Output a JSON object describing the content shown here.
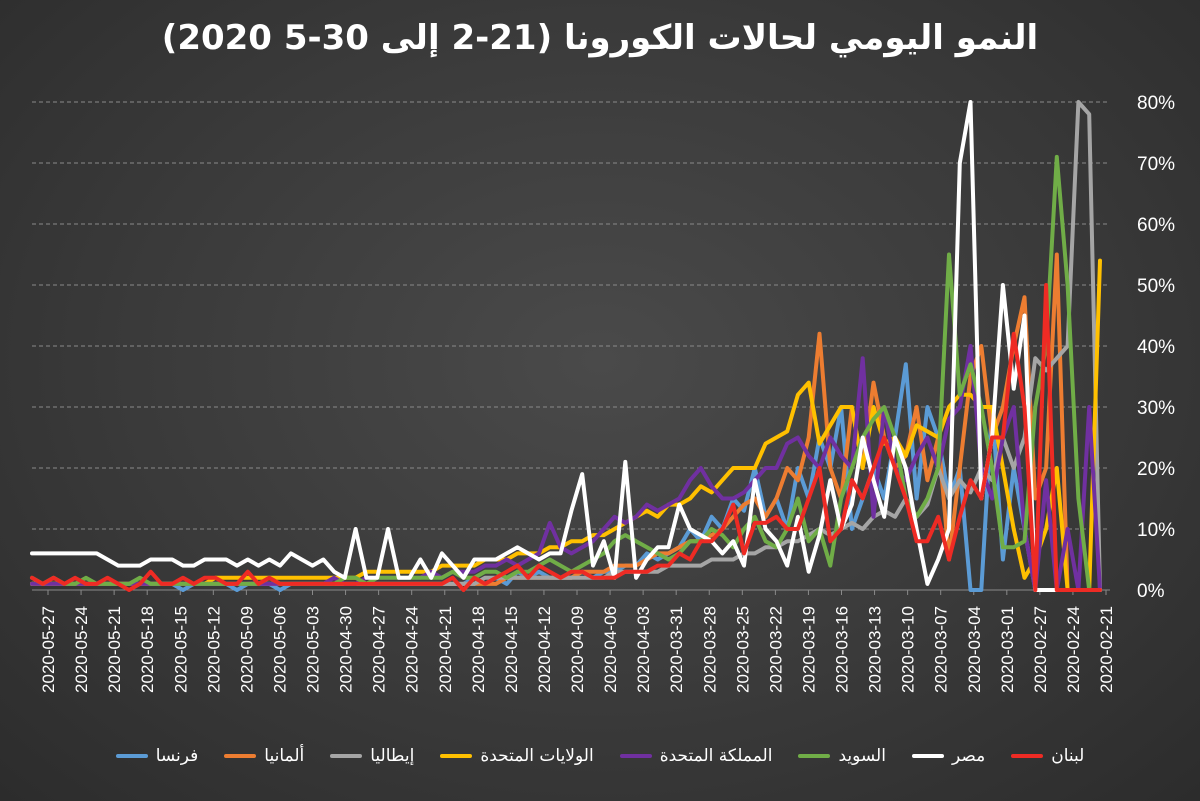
{
  "chart_data": {
    "type": "line",
    "title": "النمو اليومي لحالات الكورونا (21-2 إلى 30-5 2020)",
    "y_ticks": [
      "0%",
      "10%",
      "20%",
      "30%",
      "40%",
      "50%",
      "60%",
      "70%",
      "80%"
    ],
    "ylim": [
      0,
      80
    ],
    "x_tick_labels": [
      "2020-05-27",
      "2020-05-24",
      "2020-05-21",
      "2020-05-18",
      "2020-05-15",
      "2020-05-12",
      "2020-05-09",
      "2020-05-06",
      "2020-05-03",
      "2020-04-30",
      "2020-04-27",
      "2020-04-24",
      "2020-04-21",
      "2020-04-18",
      "2020-04-15",
      "2020-04-12",
      "2020-04-09",
      "2020-04-06",
      "2020-04-03",
      "2020-03-31",
      "2020-03-28",
      "2020-03-25",
      "2020-03-22",
      "2020-03-19",
      "2020-03-16",
      "2020-03-13",
      "2020-03-10",
      "2020-03-07",
      "2020-03-04",
      "2020-03-01",
      "2020-02-27",
      "2020-02-24",
      "2020-02-21"
    ],
    "x_order": "dates descend left to right; values listed from 2020-02-21 to 2020-05-30",
    "legend_position": "bottom",
    "grid": "horizontal dashed",
    "series": [
      {
        "name": "فرنسا",
        "color": "#5b9bd5",
        "values": [
          0,
          0,
          0,
          0,
          0,
          0,
          0,
          10,
          20,
          5,
          30,
          0,
          0,
          20,
          15,
          25,
          30,
          15,
          37,
          25,
          15,
          20,
          15,
          10,
          30,
          20,
          25,
          15,
          20,
          10,
          15,
          12,
          20,
          13,
          15,
          10,
          12,
          8,
          10,
          7,
          6,
          5,
          6,
          4,
          4,
          3,
          3,
          2,
          3,
          2,
          2,
          2,
          3,
          2,
          3,
          1,
          2,
          1,
          2,
          1,
          1,
          1,
          1,
          1,
          1,
          1,
          1,
          1,
          1,
          1,
          1,
          1,
          1,
          1,
          1,
          1,
          0,
          1,
          1,
          1,
          0,
          1,
          1,
          1,
          1,
          0,
          1,
          1,
          1,
          1,
          1,
          1,
          1,
          1,
          1,
          1,
          1,
          1,
          1,
          1
        ]
      },
      {
        "name": "ألمانيا",
        "color": "#ed7d31",
        "values": [
          0,
          0,
          0,
          0,
          55,
          20,
          15,
          48,
          40,
          30,
          25,
          40,
          35,
          20,
          5,
          25,
          18,
          30,
          22,
          20,
          25,
          34,
          20,
          30,
          15,
          20,
          42,
          25,
          18,
          20,
          15,
          12,
          15,
          14,
          12,
          10,
          9,
          8,
          8,
          7,
          6,
          6,
          5,
          4,
          4,
          4,
          3,
          3,
          3,
          2,
          2,
          2,
          2,
          2,
          2,
          2,
          1,
          1,
          1,
          1,
          1,
          1,
          1,
          1,
          1,
          1,
          1,
          1,
          1,
          1,
          1,
          1,
          1,
          1,
          1,
          1,
          1,
          1,
          1,
          1,
          1,
          1,
          1,
          1,
          1,
          1,
          1,
          1,
          1,
          1,
          1,
          1,
          1,
          1,
          1,
          1,
          1,
          1,
          1,
          1
        ]
      },
      {
        "name": "إيطاليا",
        "color": "#a5a5a5",
        "values": [
          0,
          78,
          80,
          40,
          38,
          36,
          38,
          25,
          20,
          25,
          18,
          20,
          16,
          18,
          15,
          20,
          14,
          12,
          15,
          12,
          13,
          12,
          10,
          11,
          10,
          9,
          10,
          9,
          8,
          8,
          7,
          7,
          6,
          6,
          5,
          5,
          5,
          4,
          4,
          4,
          4,
          3,
          3,
          3,
          3,
          3,
          2,
          2,
          2,
          2,
          2,
          2,
          2,
          2,
          2,
          2,
          2,
          2,
          1,
          1,
          1,
          1,
          1,
          1,
          1,
          1,
          1,
          1,
          1,
          1,
          1,
          1,
          1,
          1,
          1,
          1,
          1,
          1,
          1,
          1,
          1,
          1,
          1,
          1,
          1,
          1,
          1,
          1,
          1,
          1,
          1,
          1,
          1,
          1,
          1,
          1,
          1,
          1,
          1,
          1
        ]
      },
      {
        "name": "الولايات المتحدة",
        "color": "#ffc000",
        "values": [
          54,
          0,
          0,
          0,
          20,
          10,
          5,
          2,
          10,
          20,
          30,
          30,
          32,
          32,
          30,
          25,
          26,
          27,
          22,
          25,
          24,
          30,
          20,
          30,
          30,
          27,
          24,
          34,
          32,
          26,
          25,
          24,
          20,
          20,
          20,
          18,
          16,
          17,
          15,
          14,
          14,
          12,
          13,
          12,
          11,
          10,
          9,
          9,
          8,
          8,
          7,
          7,
          6,
          6,
          6,
          5,
          5,
          5,
          4,
          4,
          4,
          4,
          3,
          3,
          3,
          3,
          3,
          3,
          3,
          2,
          2,
          2,
          2,
          2,
          2,
          2,
          2,
          2,
          2,
          2,
          2,
          2,
          2,
          1,
          1,
          1,
          1,
          1,
          1,
          1,
          1,
          1,
          1,
          1,
          1,
          1,
          1,
          1,
          1,
          1
        ]
      },
      {
        "name": "المملكة المتحدة",
        "color": "#7030a0",
        "values": [
          0,
          30,
          0,
          10,
          0,
          18,
          0,
          10,
          30,
          25,
          15,
          20,
          40,
          30,
          28,
          20,
          25,
          22,
          18,
          20,
          30,
          12,
          38,
          20,
          22,
          25,
          20,
          22,
          25,
          24,
          20,
          20,
          18,
          16,
          15,
          15,
          17,
          20,
          18,
          15,
          14,
          13,
          14,
          12,
          11,
          12,
          10,
          8,
          7,
          6,
          7,
          11,
          6,
          5,
          4,
          5,
          4,
          4,
          3,
          3,
          3,
          2,
          3,
          2,
          2,
          2,
          2,
          2,
          2,
          1,
          1,
          2,
          1,
          1,
          1,
          1,
          1,
          1,
          1,
          1,
          1,
          1,
          1,
          1,
          1,
          1,
          1,
          1,
          1,
          1,
          1,
          1,
          1,
          1,
          1,
          1,
          1,
          1,
          1,
          1
        ]
      },
      {
        "name": "السويد",
        "color": "#70ad47",
        "values": [
          0,
          0,
          15,
          50,
          71,
          40,
          30,
          8,
          7,
          7,
          20,
          30,
          37,
          32,
          55,
          20,
          15,
          12,
          15,
          25,
          30,
          28,
          25,
          20,
          15,
          4,
          10,
          8,
          15,
          10,
          7,
          8,
          12,
          10,
          7,
          9,
          10,
          8,
          8,
          6,
          5,
          6,
          7,
          8,
          9,
          8,
          6,
          5,
          4,
          3,
          4,
          5,
          4,
          3,
          3,
          2,
          3,
          3,
          2,
          2,
          3,
          2,
          2,
          2,
          2,
          2,
          2,
          2,
          1,
          2,
          2,
          1,
          1,
          1,
          1,
          1,
          1,
          2,
          1,
          1,
          1,
          1,
          1,
          1,
          1,
          1,
          1,
          1,
          1,
          2,
          1,
          1,
          1,
          1,
          2,
          1,
          1,
          2,
          1,
          2
        ]
      },
      {
        "name": "مصر",
        "color": "#ffffff",
        "values": [
          0,
          0,
          0,
          0,
          0,
          0,
          0,
          45,
          33,
          50,
          25,
          15,
          80,
          70,
          10,
          5,
          1,
          10,
          20,
          25,
          12,
          18,
          25,
          14,
          10,
          18,
          9,
          3,
          12,
          4,
          8,
          10,
          18,
          4,
          8,
          6,
          8,
          9,
          10,
          14,
          7,
          7,
          5,
          2,
          21,
          2,
          8,
          4,
          19,
          13,
          6,
          6,
          5,
          6,
          7,
          6,
          5,
          5,
          5,
          2,
          4,
          6,
          2,
          5,
          2,
          2,
          10,
          2,
          2,
          10,
          2,
          3,
          5,
          4,
          5,
          6,
          4,
          5,
          4,
          5,
          4,
          5,
          5,
          5,
          4,
          4,
          5,
          5,
          5,
          4,
          4,
          4,
          5,
          6,
          6,
          6,
          6,
          6,
          6,
          6
        ]
      },
      {
        "name": "لبنان",
        "color": "#ee2b24",
        "values": [
          0,
          0,
          0,
          0,
          0,
          50,
          0,
          30,
          42,
          25,
          25,
          15,
          18,
          12,
          5,
          12,
          8,
          8,
          15,
          20,
          25,
          20,
          15,
          18,
          10,
          8,
          20,
          15,
          10,
          10,
          12,
          11,
          11,
          6,
          14,
          10,
          8,
          8,
          5,
          6,
          4,
          4,
          3,
          3,
          3,
          2,
          2,
          2,
          3,
          3,
          2,
          3,
          4,
          2,
          4,
          3,
          2,
          1,
          2,
          0,
          2,
          1,
          1,
          1,
          1,
          1,
          1,
          1,
          1,
          1,
          1,
          1,
          1,
          1,
          1,
          1,
          1,
          2,
          1,
          3,
          1,
          1,
          2,
          2,
          1,
          2,
          1,
          1,
          3,
          1,
          0,
          1,
          2,
          1,
          1,
          2,
          1,
          2,
          1,
          2
        ]
      }
    ]
  }
}
